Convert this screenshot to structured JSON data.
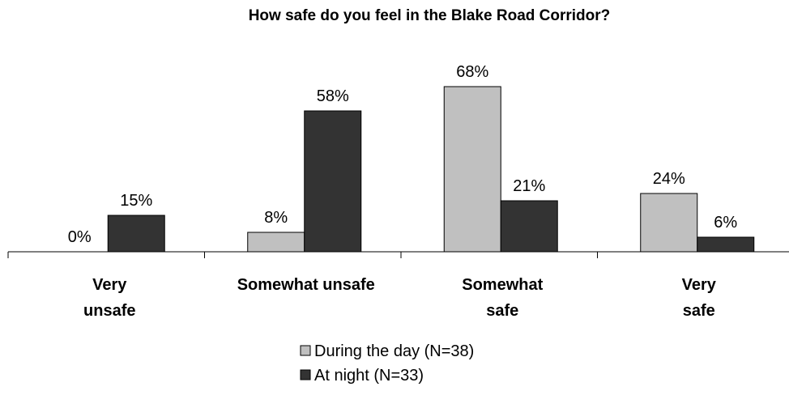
{
  "chart_data": {
    "type": "bar",
    "title": "How safe do you feel in the Blake Road Corridor?",
    "categories": [
      [
        "Very",
        "unsafe"
      ],
      [
        "Somewhat unsafe"
      ],
      [
        "Somewhat",
        "safe"
      ],
      [
        "Very",
        "safe"
      ]
    ],
    "series": [
      {
        "name": "During the day (N=38)",
        "values": [
          0,
          8,
          68,
          24
        ],
        "labels": [
          "0%",
          "8%",
          "68%",
          "24%"
        ],
        "color": "#c0c0c0"
      },
      {
        "name": "At night (N=33)",
        "values": [
          15,
          58,
          21,
          6
        ],
        "labels": [
          "15%",
          "58%",
          "21%",
          "6%"
        ],
        "color": "#333333"
      }
    ],
    "ylim": [
      0,
      70
    ],
    "grid": false,
    "legend_position": "bottom"
  }
}
